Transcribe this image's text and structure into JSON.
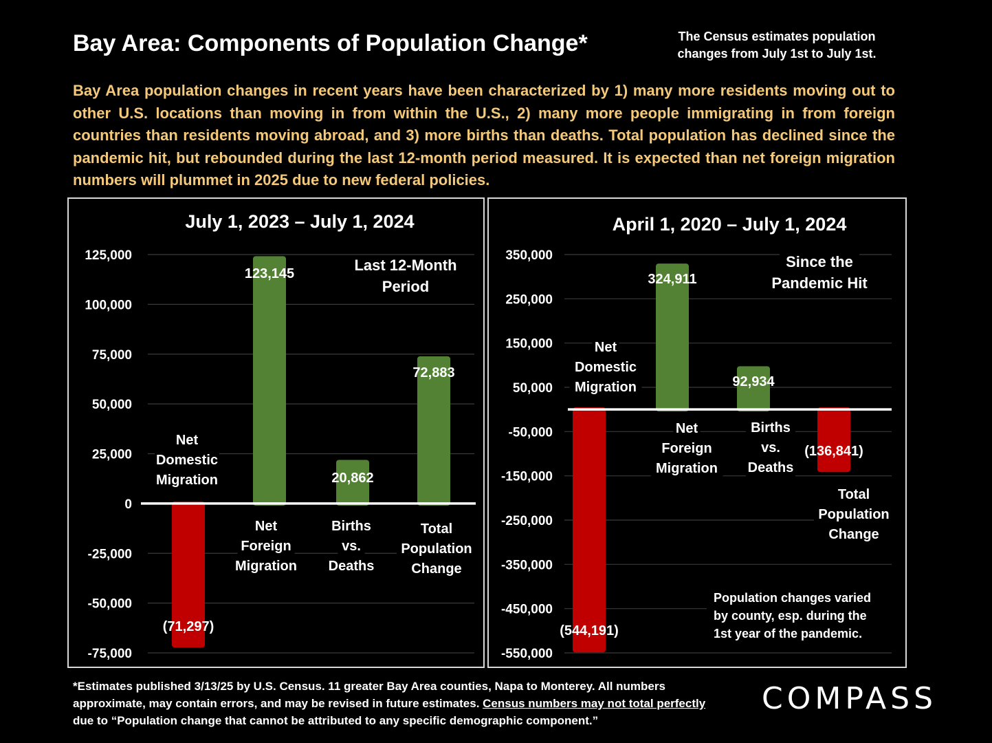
{
  "title": "Bay Area:  Components of Population Change*",
  "census_note": "The Census estimates population changes from July 1st to July 1st.",
  "intro": "Bay Area population changes in recent years have been characterized by 1) many more residents moving out to other U.S. locations than moving in from within the U.S., 2) many more people immigrating in from foreign countries than residents moving abroad, and 3) more births than deaths. Total population has declined since the pandemic hit, but rebounded during the last 12-month period measured.  It is expected than net foreign migration numbers will plummet in 2025 due to new federal policies.",
  "footer": {
    "part1": "*Estimates published 3/13/25 by U.S. Census. 11 greater Bay Area counties, Napa to Monterey. All numbers approximate, may contain errors, and may be revised in future estimates. ",
    "underlined": "Census numbers may not total perfectly ",
    "part2": "due to “Population change that cannot be attributed to any specific demographic component.”"
  },
  "logo": "COMPASS",
  "colors": {
    "positive": "#548235",
    "negative": "#c00000",
    "intro_text": "#f5c97a",
    "background": "#000000"
  },
  "chart_data": [
    {
      "type": "bar",
      "title": "July 1, 2023 – July 1, 2024",
      "annotation": [
        "Last 12-Month",
        "Period"
      ],
      "categories": [
        [
          "Net",
          "Domestic",
          "Migration"
        ],
        [
          "Net",
          "Foreign",
          "Migration"
        ],
        [
          "Births",
          "vs.",
          "Deaths"
        ],
        [
          "Total",
          "Population",
          "Change"
        ]
      ],
      "values": [
        -71297,
        123145,
        20862,
        72883
      ],
      "value_labels": [
        "(71,297)",
        "123,145",
        "20,862",
        "72,883"
      ],
      "yticks": [
        125000,
        100000,
        75000,
        50000,
        25000,
        0,
        -25000,
        -50000,
        -75000
      ],
      "ytick_labels": [
        "125,000",
        "100,000",
        "75,000",
        "50,000",
        "25,000",
        "0",
        "-25,000",
        "-50,000",
        "-75,000"
      ],
      "ylim": [
        -75000,
        125000
      ],
      "grid": true
    },
    {
      "type": "bar",
      "title": "April 1, 2020 – July 1, 2024",
      "annotation": [
        "Since the",
        "Pandemic Hit"
      ],
      "note": [
        "Population changes varied",
        "by county, esp. during the",
        "1st year of the pandemic."
      ],
      "categories": [
        [
          "Net",
          "Domestic",
          "Migration"
        ],
        [
          "Net",
          "Foreign",
          "Migration"
        ],
        [
          "Births",
          "vs.",
          "Deaths"
        ],
        [
          "Total",
          "Population",
          "Change"
        ]
      ],
      "values": [
        -544191,
        324911,
        92934,
        -136841
      ],
      "value_labels": [
        "(544,191)",
        "324,911",
        "92,934",
        "(136,841)"
      ],
      "yticks": [
        350000,
        250000,
        150000,
        50000,
        -50000,
        -150000,
        -250000,
        -350000,
        -450000,
        -550000
      ],
      "ytick_labels": [
        "350,000",
        "250,000",
        "150,000",
        "50,000",
        "-50,000",
        "-150,000",
        "-250,000",
        "-350,000",
        "-450,000",
        "-550,000"
      ],
      "ylim": [
        -550000,
        350000
      ],
      "grid": true
    }
  ]
}
